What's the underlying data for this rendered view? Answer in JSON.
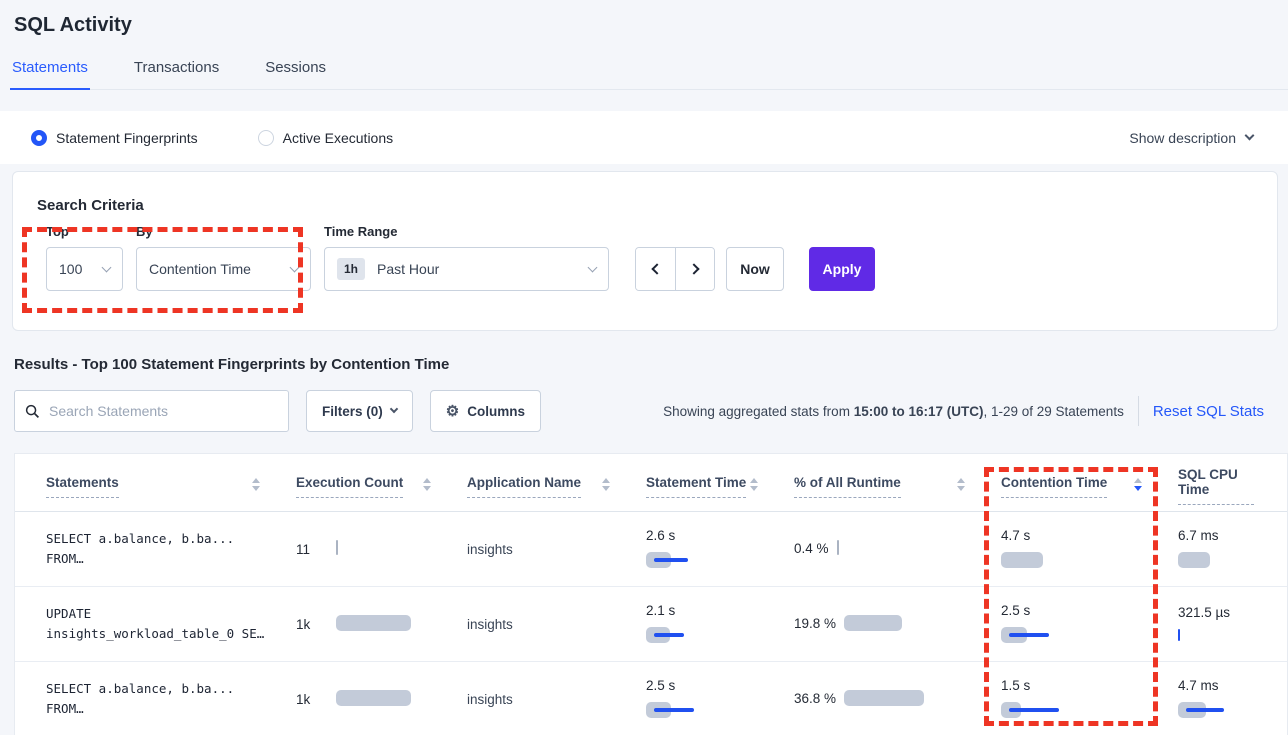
{
  "page": {
    "title": "SQL Activity"
  },
  "tabs": [
    {
      "label": "Statements",
      "active": true
    },
    {
      "label": "Transactions",
      "active": false
    },
    {
      "label": "Sessions",
      "active": false
    }
  ],
  "view_toggle": {
    "options": [
      {
        "label": "Statement Fingerprints",
        "selected": true
      },
      {
        "label": "Active Executions",
        "selected": false
      }
    ],
    "show_description_label": "Show description"
  },
  "search_criteria": {
    "heading": "Search Criteria",
    "top": {
      "label": "Top",
      "value": "100"
    },
    "by": {
      "label": "By",
      "value": "Contention Time"
    },
    "time_range": {
      "label": "Time Range",
      "badge": "1h",
      "value": "Past Hour"
    },
    "now_label": "Now",
    "apply_label": "Apply"
  },
  "results": {
    "heading": "Results - Top 100 Statement Fingerprints by Contention Time",
    "search_placeholder": "Search Statements",
    "filters_label": "Filters (0)",
    "columns_label": "Columns",
    "showing_prefix": "Showing aggregated stats from ",
    "showing_bold": "15:00 to 16:17 (UTC)",
    "showing_suffix": ", 1-29 of 29 Statements",
    "reset_label": "Reset SQL Stats"
  },
  "icons": {
    "search": "magnifier-icon",
    "gear": "gear-icon",
    "chevron_down": "chevron-down-icon",
    "prev": "chevron-left-icon",
    "next": "chevron-right-icon"
  },
  "colors": {
    "accent_blue": "#2a5cfd",
    "apply_purple": "#602ae6",
    "annotation_red": "#ee3524",
    "bar_gray": "#c3cbd9",
    "bar_blue": "#2050f0"
  },
  "table": {
    "columns": [
      {
        "label": "Statements",
        "sort": "none",
        "show_sorter": true
      },
      {
        "label": "Execution Count",
        "sort": "none",
        "show_sorter": true
      },
      {
        "label": "Application Name",
        "sort": "none",
        "show_sorter": true
      },
      {
        "label": "Statement Time",
        "sort": "none",
        "show_sorter": true
      },
      {
        "label": "% of All Runtime",
        "sort": "none",
        "show_sorter": true
      },
      {
        "label": "Contention Time",
        "sort": "desc",
        "show_sorter": true
      },
      {
        "label": "SQL CPU Time",
        "sort": "none",
        "show_sorter": false
      }
    ],
    "rows": [
      {
        "statement_line1": "SELECT a.balance, b.ba...",
        "statement_line2": "FROM…",
        "execution_count": "11",
        "application_name": "insights",
        "statement_time": "2.6 s",
        "runtime_pct": "0.4 %",
        "contention_time": "4.7 s",
        "sql_cpu_time": "6.7 ms",
        "bars": {
          "exec": {
            "tick": true,
            "color": "gray"
          },
          "stmt": {
            "gray": 25,
            "blue": 34
          },
          "runtime": {
            "tick": true,
            "color": "gray"
          },
          "contention": {
            "gray": 42,
            "blue": 0
          },
          "cpu": {
            "gray": 32,
            "blue": 0
          }
        }
      },
      {
        "statement_line1": "UPDATE",
        "statement_line2": "insights_workload_table_0 SE…",
        "execution_count": "1k",
        "application_name": "insights",
        "statement_time": "2.1 s",
        "runtime_pct": "19.8 %",
        "contention_time": "2.5 s",
        "sql_cpu_time": "321.5 µs",
        "bars": {
          "exec": {
            "gray": 75,
            "blue": 0
          },
          "stmt": {
            "gray": 24,
            "blue": 30
          },
          "runtime": {
            "gray": 58,
            "blue": 0
          },
          "contention": {
            "gray": 26,
            "blue": 40
          },
          "cpu": {
            "tick": true,
            "color": "blue"
          }
        }
      },
      {
        "statement_line1": "SELECT a.balance, b.ba...",
        "statement_line2": "FROM…",
        "execution_count": "1k",
        "application_name": "insights",
        "statement_time": "2.5 s",
        "runtime_pct": "36.8 %",
        "contention_time": "1.5 s",
        "sql_cpu_time": "4.7 ms",
        "bars": {
          "exec": {
            "gray": 75,
            "blue": 0
          },
          "stmt": {
            "gray": 25,
            "blue": 40
          },
          "runtime": {
            "gray": 80,
            "blue": 0
          },
          "contention": {
            "gray": 20,
            "blue": 50
          },
          "cpu": {
            "gray": 28,
            "blue": 38
          }
        }
      }
    ]
  }
}
